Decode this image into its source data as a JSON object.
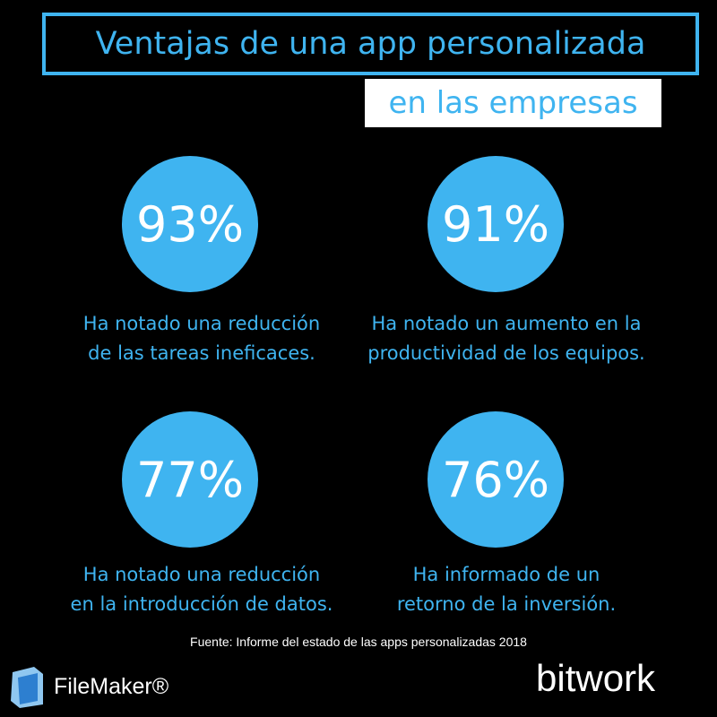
{
  "header": {
    "title": "Ventajas de una app personalizada",
    "subtitle": "en las empresas"
  },
  "stats": [
    {
      "value": "93%",
      "lines": [
        "Ha notado una reducción",
        "de las tareas ineficaces."
      ]
    },
    {
      "value": "91%",
      "lines": [
        "Ha notado un aumento en la",
        "productividad de los equipos."
      ]
    },
    {
      "value": "77%",
      "lines": [
        "Ha notado una reducción",
        "en la introducción de datos."
      ]
    },
    {
      "value": "76%",
      "lines": [
        "Ha informado de un",
        "retorno de la inversión."
      ]
    }
  ],
  "source": "Fuente: Informe del estado de las apps personalizadas 2018",
  "logos": {
    "left": "FileMaker®",
    "right": "bitwork"
  }
}
